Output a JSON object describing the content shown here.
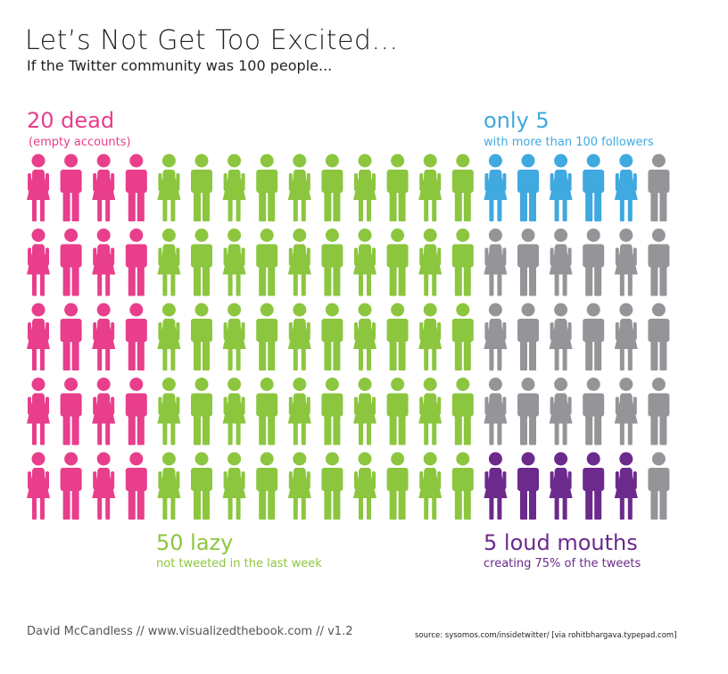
{
  "title": "Let’s Not Get Too Excited...",
  "subtitle": "If the Twitter community was 100 people...",
  "annotations": {
    "dead": {
      "big": "20 dead",
      "small": "(empty accounts)"
    },
    "followers": {
      "big": "only 5",
      "small": "with more than 100 followers"
    },
    "lazy": {
      "big": "50 lazy",
      "small": "not tweeted in the last week"
    },
    "loud": {
      "big": "5 loud mouths",
      "small": "creating 75% of the tweets"
    }
  },
  "footer": "David McCandless // www.visualizedthebook.com // v1.2",
  "source": "source: sysomos.com/insidetwitter/ [via rohitbhargava.typepad.com]",
  "chart_data": {
    "type": "pictogram",
    "total": 100,
    "rows": 5,
    "columns": 20,
    "categories": [
      {
        "name": "dead",
        "label": "20 dead",
        "value": 20,
        "color": "#e83e8c"
      },
      {
        "name": "lazy",
        "label": "50 lazy",
        "value": 50,
        "color": "#8cc63f"
      },
      {
        "name": "more-than-100-followers",
        "label": "only 5",
        "value": 5,
        "color": "#3fa9e0"
      },
      {
        "name": "loud-mouths",
        "label": "5 loud mouths",
        "value": 5,
        "color": "#6b2a8c"
      },
      {
        "name": "other",
        "value": 20,
        "color": "#939598"
      }
    ],
    "grid": [
      [
        "dead",
        "dead",
        "dead",
        "dead",
        "lazy",
        "lazy",
        "lazy",
        "lazy",
        "lazy",
        "lazy",
        "lazy",
        "lazy",
        "lazy",
        "lazy",
        "more-than-100-followers",
        "more-than-100-followers",
        "more-than-100-followers",
        "more-than-100-followers",
        "more-than-100-followers",
        "other"
      ],
      [
        "dead",
        "dead",
        "dead",
        "dead",
        "lazy",
        "lazy",
        "lazy",
        "lazy",
        "lazy",
        "lazy",
        "lazy",
        "lazy",
        "lazy",
        "lazy",
        "other",
        "other",
        "other",
        "other",
        "other",
        "other"
      ],
      [
        "dead",
        "dead",
        "dead",
        "dead",
        "lazy",
        "lazy",
        "lazy",
        "lazy",
        "lazy",
        "lazy",
        "lazy",
        "lazy",
        "lazy",
        "lazy",
        "other",
        "other",
        "other",
        "other",
        "other",
        "other"
      ],
      [
        "dead",
        "dead",
        "dead",
        "dead",
        "lazy",
        "lazy",
        "lazy",
        "lazy",
        "lazy",
        "lazy",
        "lazy",
        "lazy",
        "lazy",
        "lazy",
        "other",
        "other",
        "other",
        "other",
        "other",
        "other"
      ],
      [
        "dead",
        "dead",
        "dead",
        "dead",
        "lazy",
        "lazy",
        "lazy",
        "lazy",
        "lazy",
        "lazy",
        "lazy",
        "lazy",
        "lazy",
        "lazy",
        "loud-mouths",
        "loud-mouths",
        "loud-mouths",
        "loud-mouths",
        "loud-mouths",
        "other"
      ]
    ],
    "figure_pattern": [
      "female",
      "male"
    ]
  }
}
